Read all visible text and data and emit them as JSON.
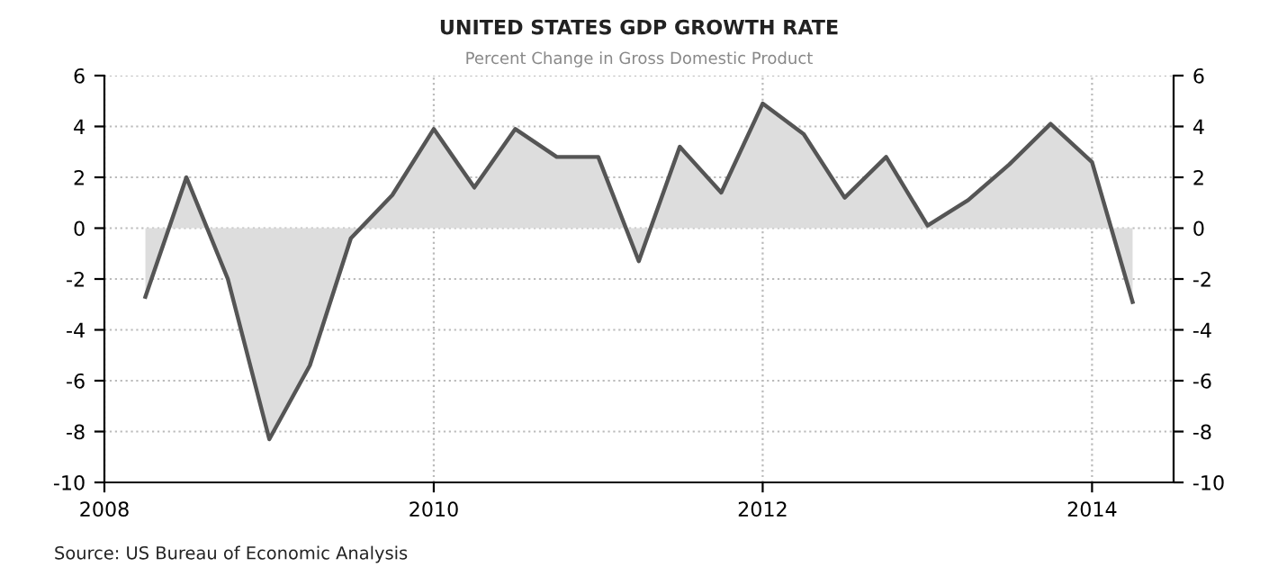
{
  "chart_data": {
    "type": "area",
    "title": "UNITED STATES GDP GROWTH RATE",
    "subtitle": "Percent Change in Gross Domestic Product",
    "x": [
      "2008-04",
      "2008-07",
      "2008-10",
      "2009-01",
      "2009-04",
      "2009-07",
      "2009-10",
      "2010-01",
      "2010-04",
      "2010-07",
      "2010-10",
      "2011-01",
      "2011-04",
      "2011-07",
      "2011-10",
      "2012-01",
      "2012-04",
      "2012-07",
      "2012-10",
      "2013-01",
      "2013-04",
      "2013-07",
      "2013-10",
      "2014-01",
      "2014-04"
    ],
    "series": [
      {
        "color": "#555555",
        "values": [
          -2.7,
          2.0,
          -2.0,
          -8.3,
          -5.4,
          -0.4,
          1.3,
          3.9,
          1.6,
          3.9,
          2.8,
          2.8,
          -1.3,
          3.2,
          1.4,
          4.9,
          3.7,
          1.2,
          2.8,
          0.1,
          1.1,
          2.5,
          4.1,
          2.6,
          -2.9
        ]
      }
    ],
    "xlim": [
      "2008-01",
      "2014-07"
    ],
    "xticks": [
      {
        "value": "2008-01",
        "label": "2008"
      },
      {
        "value": "2010-01",
        "label": "2010"
      },
      {
        "value": "2012-01",
        "label": "2012"
      },
      {
        "value": "2014-01",
        "label": "2014"
      }
    ],
    "ylim": [
      -10,
      6
    ],
    "yticks": [
      -10,
      -8,
      -6,
      -4,
      -2,
      0,
      2,
      4,
      6
    ],
    "y2lim": [
      -10,
      6
    ],
    "y2ticks": [
      -10,
      -8,
      -6,
      -4,
      -2,
      0,
      2,
      4,
      6
    ],
    "grid": true,
    "annotations": [
      "Source: US Bureau of Economic Analysis"
    ]
  }
}
